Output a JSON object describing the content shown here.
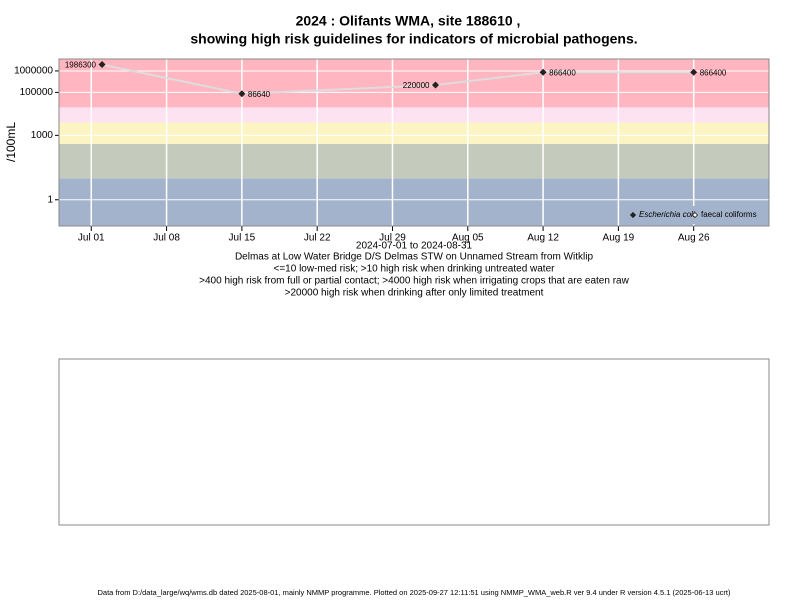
{
  "chart_data": {
    "type": "line",
    "title": "2024 : Olifants WMA, site 188610 ,",
    "title_line2": "showing high risk guidelines for indicators of microbial pathogens.",
    "y_label": "/100mL",
    "x_label": "2024-07-01 to 2024-08-31",
    "subtitle_lines": [
      "Delmas at Low Water Bridge D/S Delmas STW on Unnamed Stream from Witklip",
      "<=10 low-med risk; >10 high risk when drinking untreated water",
      ">400 high risk from full or partial contact; >4000 high risk when irrigating crops that are eaten raw",
      ">20000 high risk when drinking after only limited treatment"
    ],
    "footer": "Data from D:/data_large/wq/wms.db dated 2025-08-01, mainly NMMP programme. Plotted on 2025-09-27 12:11:51 using NMMP_WMA_web.R ver 9.4 under R version 4.5.1 (2025-06-13 ucrt)",
    "x": [
      "2024-07-02",
      "2024-07-15",
      "2024-08-02",
      "2024-08-12",
      "2024-08-26"
    ],
    "series": [
      {
        "name": "Escherichia coli",
        "color": "#222222",
        "line_color": "#dddddd",
        "values": [
          1986300,
          86640,
          220000,
          866400,
          866400
        ]
      },
      {
        "name": "faecal coliforms",
        "color": "#222222",
        "values": [
          null,
          null,
          null,
          null,
          null
        ]
      }
    ],
    "xlim": [
      "2024-06-28",
      "2024-09-02"
    ],
    "xticks": [
      {
        "value": "2024-07-01",
        "label": "Jul 01"
      },
      {
        "value": "2024-07-08",
        "label": "Jul 08"
      },
      {
        "value": "2024-07-15",
        "label": "Jul 15"
      },
      {
        "value": "2024-07-22",
        "label": "Jul 22"
      },
      {
        "value": "2024-07-29",
        "label": "Jul 29"
      },
      {
        "value": "2024-08-05",
        "label": "Aug 05"
      },
      {
        "value": "2024-08-12",
        "label": "Aug 12"
      },
      {
        "value": "2024-08-19",
        "label": "Aug 19"
      },
      {
        "value": "2024-08-26",
        "label": "Aug 26"
      }
    ],
    "ylim": [
      0.06,
      3600000
    ],
    "yticks": [
      1,
      1000,
      100000,
      1000000
    ],
    "log_y": true,
    "grid": true,
    "legend": "bottom-right",
    "risk_thresholds": [
      10,
      400,
      4000,
      20000
    ],
    "band_colors": [
      "#a3b3cc",
      "#c4cbbd",
      "#fcf4c2",
      "#fde2f2",
      "#ffb6c1"
    ]
  }
}
